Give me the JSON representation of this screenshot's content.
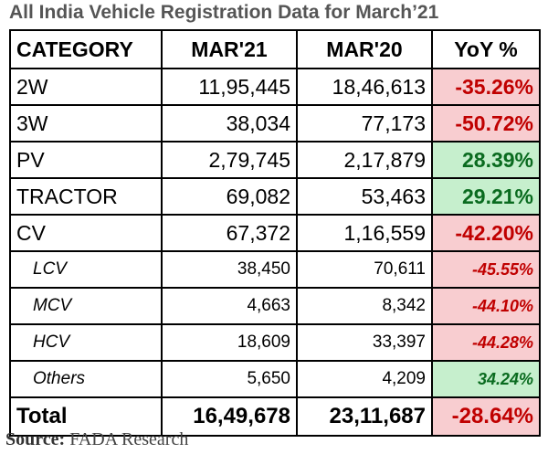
{
  "title": "All India Vehicle Registration Data for March’21",
  "table": {
    "headers": {
      "category": "CATEGORY",
      "mar21": "MAR'21",
      "mar20": "MAR'20",
      "yoy": "YoY %"
    },
    "rows": [
      {
        "category": "2W",
        "mar21": "11,95,445",
        "mar20": "18,46,613",
        "yoy": "-35.26%",
        "trend": "negative"
      },
      {
        "category": "3W",
        "mar21": "38,034",
        "mar20": "77,173",
        "yoy": "-50.72%",
        "trend": "negative"
      },
      {
        "category": "PV",
        "mar21": "2,79,745",
        "mar20": "2,17,879",
        "yoy": "28.39%",
        "trend": "positive"
      },
      {
        "category": "TRACTOR",
        "mar21": "69,082",
        "mar20": "53,463",
        "yoy": "29.21%",
        "trend": "positive"
      },
      {
        "category": "CV",
        "mar21": "67,372",
        "mar20": "1,16,559",
        "yoy": "-42.20%",
        "trend": "negative"
      },
      {
        "category": "LCV",
        "mar21": "38,450",
        "mar20": "70,611",
        "yoy": "-45.55%",
        "trend": "negative"
      },
      {
        "category": "MCV",
        "mar21": "4,663",
        "mar20": "8,342",
        "yoy": "-44.10%",
        "trend": "negative"
      },
      {
        "category": "HCV",
        "mar21": "18,609",
        "mar20": "33,397",
        "yoy": "-44.28%",
        "trend": "negative"
      },
      {
        "category": "Others",
        "mar21": "5,650",
        "mar20": "4,209",
        "yoy": "34.24%",
        "trend": "positive"
      }
    ],
    "total": {
      "category": "Total",
      "mar21": "16,49,678",
      "mar20": "23,11,687",
      "yoy": "-28.64%",
      "trend": "negative"
    }
  },
  "source": {
    "label": "Source:",
    "text": "FADA Research"
  },
  "colors": {
    "negative_bg": "#f8cdd0",
    "negative_text": "#c00000",
    "positive_bg": "#c6efcd",
    "positive_text": "#0a6b1f"
  }
}
